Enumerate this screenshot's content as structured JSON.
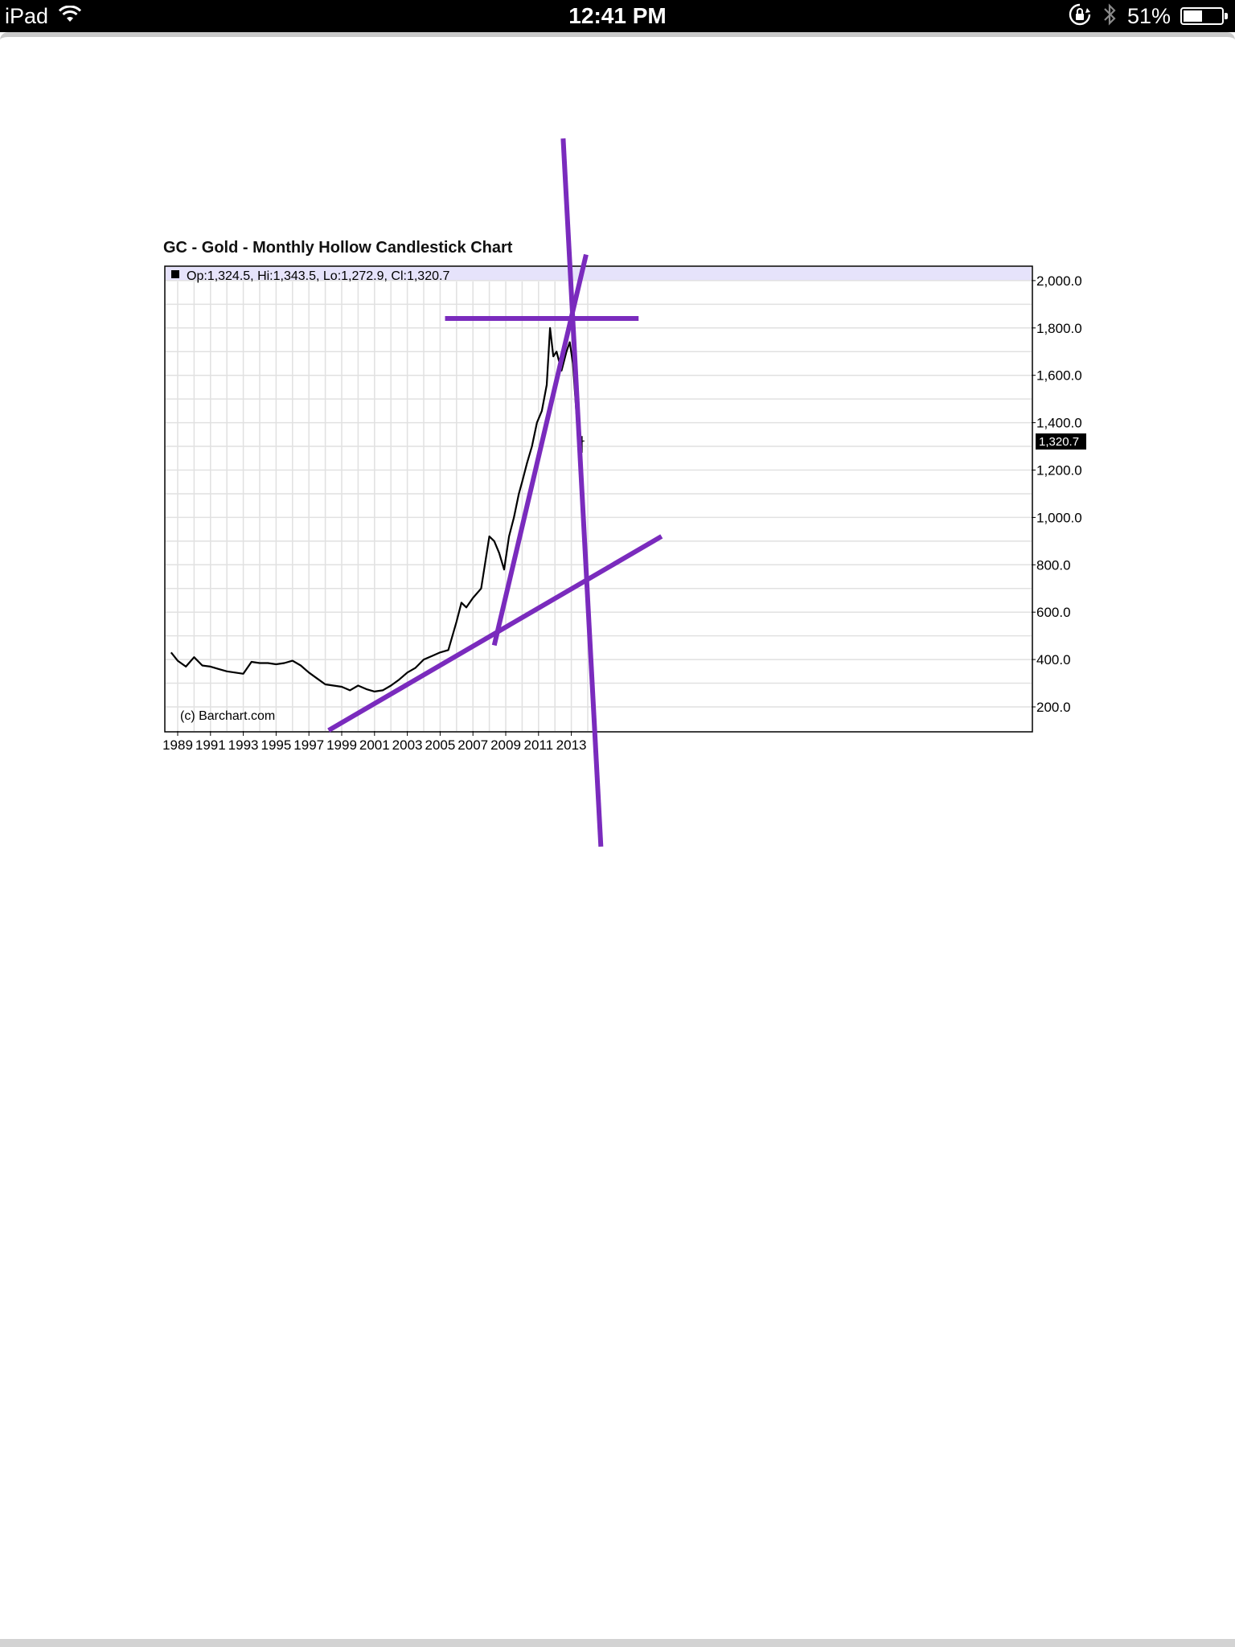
{
  "status_bar": {
    "carrier": "iPad",
    "time": "12:41 PM",
    "battery_percent": "51%",
    "battery_level": 0.51
  },
  "chart_data": {
    "type": "candlestick",
    "title": "GC - Gold - Monthly Hollow Candlestick Chart",
    "info_line": "Op:1,324.5, Hi:1,343.5, Lo:1,272.9, Cl:1,320.7",
    "last_price_label": "1,320.7",
    "credit": "(c) Barchart.com",
    "x_ticks": [
      "1989",
      "1991",
      "1993",
      "1995",
      "1997",
      "1999",
      "2001",
      "2003",
      "2005",
      "2007",
      "2009",
      "2011",
      "2013"
    ],
    "y_ticks": [
      "200.0",
      "400.0",
      "600.0",
      "800.0",
      "1,000.0",
      "1,200.0",
      "1,400.0",
      "1,600.0",
      "1,800.0",
      "2,000.0"
    ],
    "xlim": [
      1988.6,
      2014.8
    ],
    "ylim": [
      100,
      2070
    ],
    "y_axis_side": "right",
    "grid": true,
    "last_bar": {
      "open": 1324.5,
      "high": 1343.5,
      "low": 1272.9,
      "close": 1320.7
    },
    "price_path": {
      "x": [
        1988.6,
        1989.0,
        1989.5,
        1990.0,
        1990.5,
        1991.0,
        1991.5,
        1992.0,
        1992.5,
        1993.0,
        1993.5,
        1994.0,
        1994.5,
        1995.0,
        1995.5,
        1996.0,
        1996.5,
        1997.0,
        1997.5,
        1998.0,
        1998.5,
        1999.0,
        1999.5,
        2000.0,
        2000.5,
        2001.0,
        2001.5,
        2002.0,
        2002.5,
        2003.0,
        2003.5,
        2004.0,
        2004.5,
        2005.0,
        2005.5,
        2006.0,
        2006.3,
        2006.6,
        2007.0,
        2007.5,
        2008.0,
        2008.3,
        2008.6,
        2008.9,
        2009.2,
        2009.5,
        2009.8,
        2010.0,
        2010.3,
        2010.6,
        2010.9,
        2011.2,
        2011.5,
        2011.7,
        2011.9,
        2012.1,
        2012.4,
        2012.7,
        2012.9,
        2013.1,
        2013.3,
        2013.5,
        2013.65
      ],
      "y": [
        430,
        395,
        370,
        410,
        375,
        370,
        360,
        350,
        345,
        340,
        390,
        385,
        385,
        380,
        385,
        395,
        375,
        345,
        320,
        295,
        290,
        285,
        270,
        290,
        275,
        265,
        270,
        290,
        315,
        345,
        365,
        400,
        415,
        430,
        440,
        560,
        640,
        620,
        660,
        700,
        920,
        900,
        850,
        780,
        920,
        1000,
        1100,
        1150,
        1230,
        1300,
        1400,
        1450,
        1560,
        1800,
        1680,
        1700,
        1620,
        1700,
        1740,
        1650,
        1450,
        1300,
        1320.7
      ]
    },
    "annotations": {
      "color": "#7a2bbd",
      "lines": [
        {
          "from": [
            1998.2,
            101
          ],
          "to": [
            2018.5,
            920
          ]
        },
        {
          "from": [
            2005.3,
            1840
          ],
          "to": [
            2017.1,
            1840
          ]
        },
        {
          "from": [
            2008.3,
            460
          ],
          "to": [
            2013.9,
            2110
          ]
        },
        {
          "from": [
            2012.5,
            2600
          ],
          "to": [
            2014.8,
            -390
          ]
        }
      ]
    }
  }
}
